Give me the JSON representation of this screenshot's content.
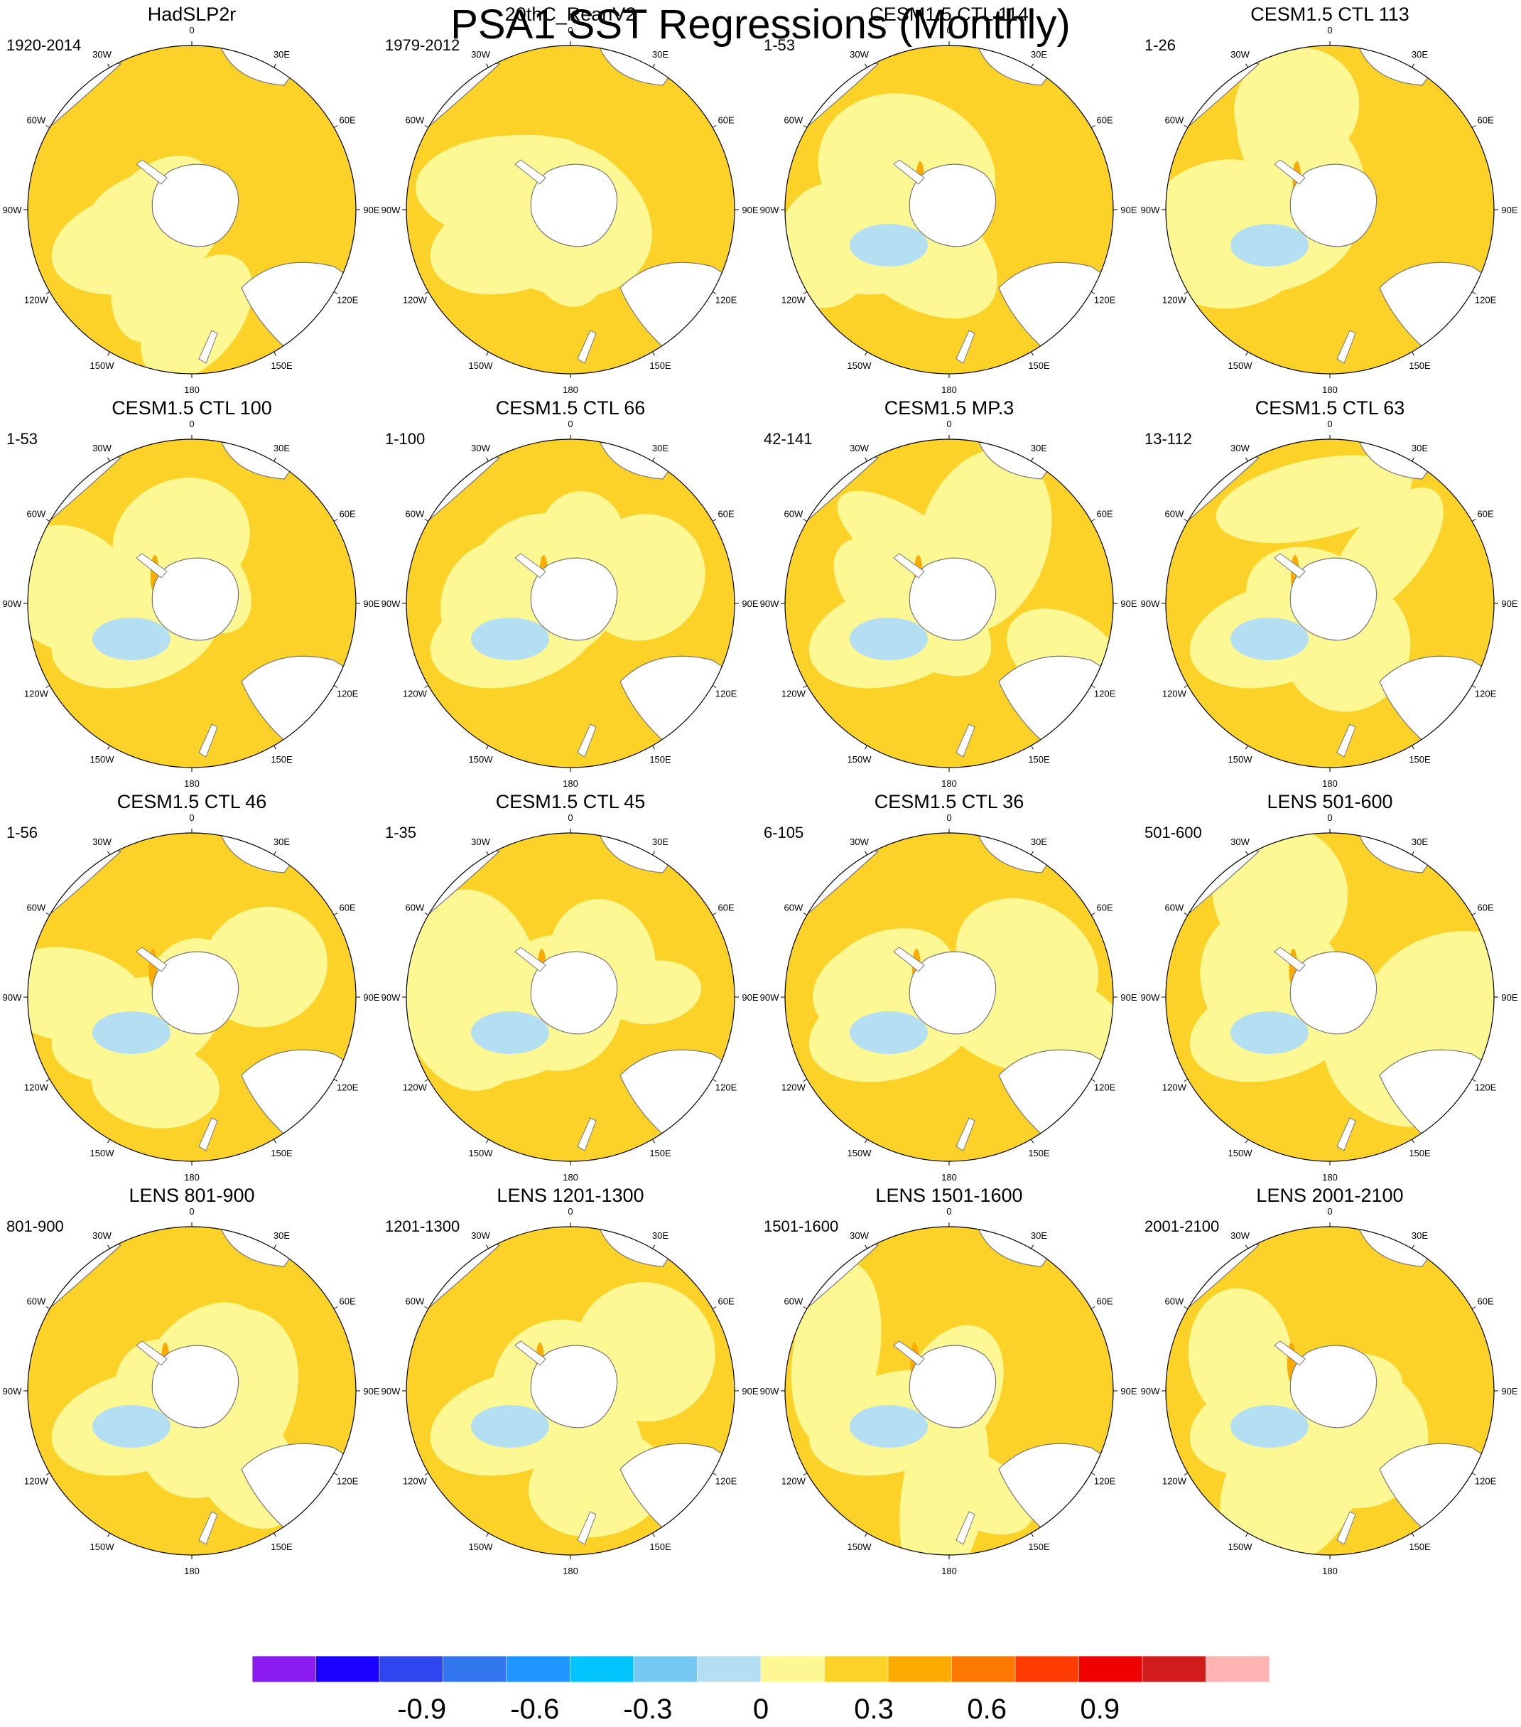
{
  "title": "PSA1 SST Regressions (Monthly)",
  "chart_data": {
    "type": "contour-map",
    "projection": "south-polar-stereographic",
    "grid": true,
    "longitude_labels": [
      "0",
      "30E",
      "60E",
      "90E",
      "120E",
      "150E",
      "180",
      "150W",
      "120W",
      "90W",
      "60W",
      "30W"
    ],
    "panels": [
      {
        "title": "HadSLP2r",
        "period": "1920-2014"
      },
      {
        "title": "20thC_ReanV2",
        "period": "1979-2012"
      },
      {
        "title": "CESM1.5 CTL 114",
        "period": "1-53"
      },
      {
        "title": "CESM1.5 CTL 113",
        "period": "1-26"
      },
      {
        "title": "CESM1.5 CTL 100",
        "period": "1-53"
      },
      {
        "title": "CESM1.5 CTL 66",
        "period": "1-100"
      },
      {
        "title": "CESM1.5 MP.3",
        "period": "42-141"
      },
      {
        "title": "CESM1.5 CTL 63",
        "period": "13-112"
      },
      {
        "title": "CESM1.5 CTL 46",
        "period": "1-56"
      },
      {
        "title": "CESM1.5 CTL 45",
        "period": "1-35"
      },
      {
        "title": "CESM1.5 CTL 36",
        "period": "6-105"
      },
      {
        "title": "LENS 501-600",
        "period": "501-600"
      },
      {
        "title": "LENS 801-900",
        "period": "801-900"
      },
      {
        "title": "LENS 1201-1300",
        "period": "1201-1300"
      },
      {
        "title": "LENS 1501-1600",
        "period": "1501-1600"
      },
      {
        "title": "LENS 2001-2100",
        "period": "2001-2100"
      }
    ],
    "colorbar": {
      "colors": [
        "#8b1cf0",
        "#1a00ff",
        "#2e45f0",
        "#3377ee",
        "#1f96ff",
        "#00c4ff",
        "#74c8f2",
        "#b4dff2",
        "#fdf894",
        "#fcd228",
        "#fcac00",
        "#fc7800",
        "#ff3c00",
        "#f00000",
        "#d21c1c",
        "#ffb3b3"
      ],
      "tick_labels": [
        "-0.9",
        "-0.6",
        "-0.3",
        "0",
        "0.3",
        "0.6",
        "0.9"
      ],
      "tick_values": [
        -0.9,
        -0.6,
        -0.3,
        0,
        0.3,
        0.6,
        0.9
      ],
      "range": [
        -1.35,
        1.35
      ],
      "step": 0.15
    },
    "map_colors": {
      "land": "#ffffff",
      "coast": "#777777",
      "border": "#000000"
    }
  }
}
